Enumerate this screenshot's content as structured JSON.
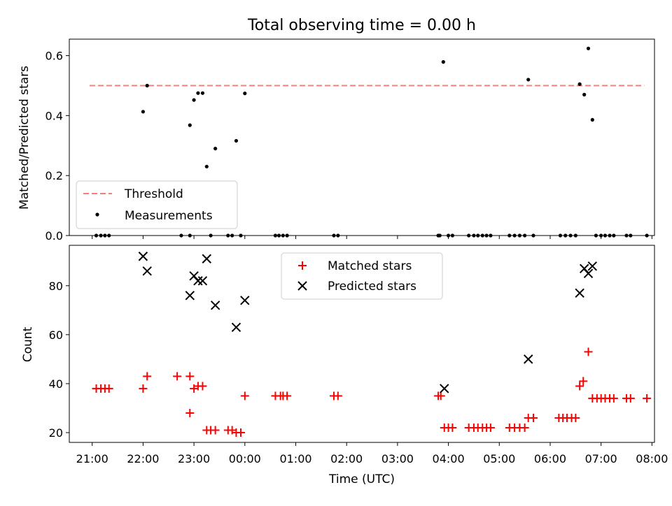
{
  "title": "Total observing time = 0.00 h",
  "chart_data": [
    {
      "type": "scatter",
      "panel": "top",
      "title": "Total observing time = 0.00 h",
      "xlabel": "",
      "ylabel": "Matched/Predicted stars",
      "ylim": [
        0,
        0.655
      ],
      "yticks": [
        0.0,
        0.2,
        0.4,
        0.6
      ],
      "ytick_labels": [
        "0.0",
        "0.2",
        "0.4",
        "0.6"
      ],
      "legend_position": "lower-left",
      "grid": false,
      "threshold": {
        "name": "Threshold",
        "value": 0.5,
        "x_start": 20.95,
        "x_end": 31.85,
        "color": "#f08080"
      },
      "measurements": {
        "name": "Measurements",
        "color": "#000000",
        "points": [
          [
            21.08,
            0
          ],
          [
            21.17,
            0
          ],
          [
            21.25,
            0
          ],
          [
            21.33,
            0
          ],
          [
            22.0,
            0.413
          ],
          [
            22.08,
            0.5
          ],
          [
            22.75,
            0
          ],
          [
            22.92,
            0
          ],
          [
            22.92,
            0.368
          ],
          [
            23.0,
            0.452
          ],
          [
            23.08,
            0.475
          ],
          [
            23.17,
            0.475
          ],
          [
            23.25,
            0.23
          ],
          [
            23.33,
            0
          ],
          [
            23.42,
            0.29
          ],
          [
            23.67,
            0
          ],
          [
            23.75,
            0
          ],
          [
            23.83,
            0.316
          ],
          [
            23.92,
            0
          ],
          [
            24.0,
            0.474
          ],
          [
            24.6,
            0
          ],
          [
            24.67,
            0
          ],
          [
            24.75,
            0
          ],
          [
            24.83,
            0
          ],
          [
            25.75,
            0
          ],
          [
            25.83,
            0
          ],
          [
            27.8,
            0
          ],
          [
            27.83,
            0
          ],
          [
            27.9,
            0.579
          ],
          [
            28.0,
            0
          ],
          [
            28.08,
            0
          ],
          [
            28.4,
            0
          ],
          [
            28.5,
            0
          ],
          [
            28.58,
            0
          ],
          [
            28.67,
            0
          ],
          [
            28.75,
            0
          ],
          [
            28.83,
            0
          ],
          [
            29.2,
            0
          ],
          [
            29.3,
            0
          ],
          [
            29.4,
            0
          ],
          [
            29.5,
            0
          ],
          [
            29.57,
            0.52
          ],
          [
            29.67,
            0
          ],
          [
            30.2,
            0
          ],
          [
            30.3,
            0
          ],
          [
            30.4,
            0
          ],
          [
            30.5,
            0
          ],
          [
            30.58,
            0.505
          ],
          [
            30.67,
            0.47
          ],
          [
            30.75,
            0.624
          ],
          [
            30.83,
            0.386
          ],
          [
            30.9,
            0
          ],
          [
            31.0,
            0
          ],
          [
            31.08,
            0
          ],
          [
            31.17,
            0
          ],
          [
            31.25,
            0
          ],
          [
            31.5,
            0
          ],
          [
            31.58,
            0
          ],
          [
            31.9,
            0
          ]
        ]
      }
    },
    {
      "type": "scatter",
      "panel": "bottom",
      "xlabel": "Time (UTC)",
      "ylabel": "Count",
      "xlim": [
        20.55,
        32.05
      ],
      "ylim": [
        16,
        96.5
      ],
      "xticks": [
        21,
        22,
        23,
        24,
        25,
        26,
        27,
        28,
        29,
        30,
        31,
        32
      ],
      "xtick_labels": [
        "21:00",
        "22:00",
        "23:00",
        "00:00",
        "01:00",
        "02:00",
        "03:00",
        "04:00",
        "05:00",
        "06:00",
        "07:00",
        "08:00"
      ],
      "yticks": [
        20,
        40,
        60,
        80
      ],
      "ytick_labels": [
        "20",
        "40",
        "60",
        "80"
      ],
      "legend_position": "upper-center",
      "grid": false,
      "series": [
        {
          "name": "Matched stars",
          "marker": "plus",
          "color": "#ff0000",
          "points": [
            [
              21.08,
              38
            ],
            [
              21.17,
              38
            ],
            [
              21.25,
              38
            ],
            [
              21.33,
              38
            ],
            [
              22.0,
              38
            ],
            [
              22.08,
              43
            ],
            [
              22.67,
              43
            ],
            [
              22.92,
              43
            ],
            [
              22.92,
              28
            ],
            [
              23.0,
              38
            ],
            [
              23.08,
              39
            ],
            [
              23.17,
              39
            ],
            [
              23.25,
              21
            ],
            [
              23.33,
              21
            ],
            [
              23.42,
              21
            ],
            [
              23.67,
              21
            ],
            [
              23.75,
              21
            ],
            [
              23.83,
              20
            ],
            [
              23.92,
              20
            ],
            [
              24.0,
              35
            ],
            [
              24.6,
              35
            ],
            [
              24.7,
              35
            ],
            [
              24.75,
              35
            ],
            [
              24.83,
              35
            ],
            [
              25.75,
              35
            ],
            [
              25.83,
              35
            ],
            [
              27.8,
              35
            ],
            [
              27.85,
              35
            ],
            [
              27.92,
              22
            ],
            [
              28.0,
              22
            ],
            [
              28.08,
              22
            ],
            [
              28.4,
              22
            ],
            [
              28.5,
              22
            ],
            [
              28.58,
              22
            ],
            [
              28.67,
              22
            ],
            [
              28.75,
              22
            ],
            [
              28.83,
              22
            ],
            [
              29.2,
              22
            ],
            [
              29.3,
              22
            ],
            [
              29.4,
              22
            ],
            [
              29.5,
              22
            ],
            [
              29.57,
              26
            ],
            [
              29.67,
              26
            ],
            [
              30.17,
              26
            ],
            [
              30.25,
              26
            ],
            [
              30.33,
              26
            ],
            [
              30.42,
              26
            ],
            [
              30.5,
              26
            ],
            [
              30.58,
              39
            ],
            [
              30.65,
              41
            ],
            [
              30.75,
              53
            ],
            [
              30.83,
              34
            ],
            [
              30.92,
              34
            ],
            [
              31.0,
              34
            ],
            [
              31.08,
              34
            ],
            [
              31.17,
              34
            ],
            [
              31.25,
              34
            ],
            [
              31.5,
              34
            ],
            [
              31.58,
              34
            ],
            [
              31.9,
              34
            ]
          ]
        },
        {
          "name": "Predicted stars",
          "marker": "x",
          "color": "#000000",
          "points": [
            [
              22.0,
              92
            ],
            [
              22.08,
              86
            ],
            [
              22.92,
              76
            ],
            [
              23.0,
              84
            ],
            [
              23.08,
              82
            ],
            [
              23.17,
              82
            ],
            [
              23.25,
              91
            ],
            [
              23.42,
              72
            ],
            [
              23.83,
              63
            ],
            [
              24.0,
              74
            ],
            [
              27.92,
              38
            ],
            [
              29.57,
              50
            ],
            [
              30.58,
              77
            ],
            [
              30.67,
              87
            ],
            [
              30.75,
              85
            ],
            [
              30.83,
              88
            ]
          ]
        }
      ]
    }
  ]
}
